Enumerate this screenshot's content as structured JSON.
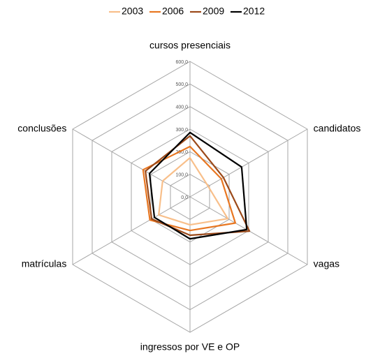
{
  "chart_data": {
    "type": "radar",
    "categories": [
      "cursos presenciais",
      "candidatos",
      "vagas",
      "ingressos por VE e OP",
      "matrículas",
      "conclusões"
    ],
    "series": [
      {
        "name": "2003",
        "color": "#f8bf8a",
        "values": [
          173,
          93,
          193,
          124,
          160,
          140
        ]
      },
      {
        "name": "2006",
        "color": "#e87722",
        "values": [
          223,
          160,
          232,
          149,
          205,
          240
        ]
      },
      {
        "name": "2009",
        "color": "#9c4a1a",
        "values": [
          270,
          171,
          304,
          170,
          196,
          228
        ]
      },
      {
        "name": "2012",
        "color": "#000000",
        "values": [
          285,
          264,
          290,
          186,
          182,
          207
        ]
      }
    ],
    "ylim": [
      0,
      600
    ],
    "yticks": [
      {
        "value": 0,
        "label": "0,0"
      },
      {
        "value": 100,
        "label": "100,0"
      },
      {
        "value": 200,
        "label": "200,0"
      },
      {
        "value": 300,
        "label": "300,0"
      },
      {
        "value": 400,
        "label": "400,0"
      },
      {
        "value": 500,
        "label": "500,0"
      },
      {
        "value": 600,
        "label": "600,0"
      }
    ],
    "grid": true,
    "legend": "top"
  }
}
